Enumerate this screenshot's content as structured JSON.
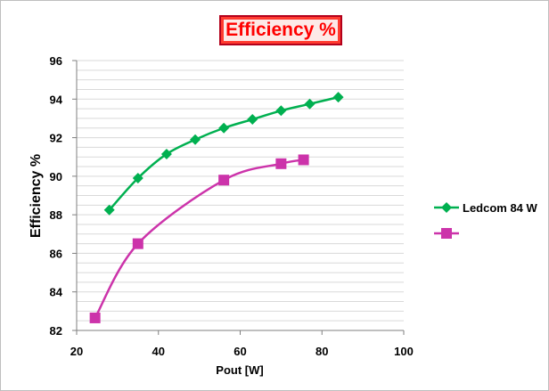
{
  "chart_data": {
    "type": "line",
    "title": "Efficiency %",
    "xlabel": "Pout [W]",
    "ylabel": "Efficiency %",
    "xlim": [
      20,
      100
    ],
    "ylim": [
      82,
      96
    ],
    "x_ticks": [
      "20",
      "40",
      "60",
      "80",
      "100"
    ],
    "y_ticks": [
      "82",
      "84",
      "86",
      "88",
      "90",
      "92",
      "94",
      "96"
    ],
    "grid": "horizontal",
    "legend_position": "right",
    "series": [
      {
        "name": "Ledcom 84 W",
        "color": "#00b050",
        "marker": "diamond",
        "x": [
          28,
          35,
          42,
          49,
          56,
          63,
          70,
          77,
          84
        ],
        "y": [
          88.25,
          89.9,
          91.15,
          91.9,
          92.5,
          92.95,
          93.4,
          93.75,
          94.1
        ]
      },
      {
        "name": "",
        "color": "#cc33aa",
        "marker": "square",
        "x": [
          24.5,
          35,
          56,
          70,
          75.5
        ],
        "y": [
          82.65,
          86.5,
          89.8,
          90.65,
          90.85
        ]
      }
    ]
  }
}
